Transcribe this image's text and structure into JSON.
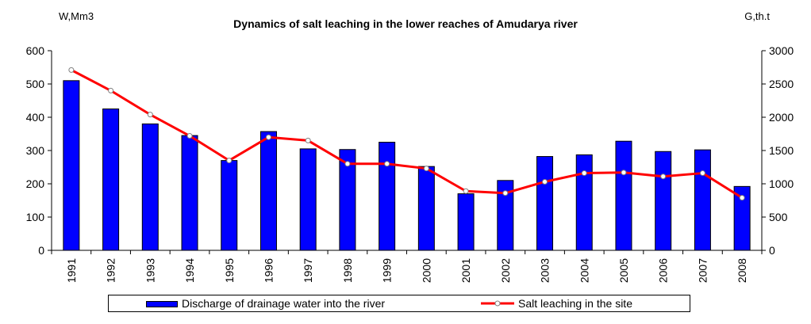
{
  "chart_data": {
    "type": "bar",
    "title": "Dynamics of salt leaching in the lower reaches of Amudarya river",
    "ylabel": "W,Mm3",
    "ylabel_right": "G,th.t",
    "categories": [
      "1991",
      "1992",
      "1993",
      "1994",
      "1995",
      "1996",
      "1997",
      "1998",
      "1999",
      "2000",
      "2001",
      "2002",
      "2003",
      "2004",
      "2005",
      "2006",
      "2007",
      "2008"
    ],
    "series": [
      {
        "name": "Discharge of drainage water into the river",
        "type": "bar",
        "axis": "left",
        "color": "#0000ff",
        "values": [
          510,
          425,
          380,
          345,
          270,
          357,
          305,
          303,
          325,
          252,
          170,
          210,
          282,
          287,
          328,
          297,
          302,
          192
        ]
      },
      {
        "name": "Salt leaching in the site",
        "type": "line",
        "axis": "right",
        "color": "#ff0000",
        "values": [
          2710,
          2400,
          2040,
          1720,
          1350,
          1700,
          1650,
          1300,
          1300,
          1230,
          890,
          860,
          1030,
          1160,
          1170,
          1110,
          1160,
          790
        ]
      }
    ],
    "ylim": [
      0,
      600
    ],
    "yticks": [
      0,
      100,
      200,
      300,
      400,
      500,
      600
    ],
    "ylim_right": [
      0,
      3000
    ],
    "yticks_right": [
      0,
      500,
      1000,
      1500,
      2000,
      2500,
      3000
    ],
    "grid": false,
    "legend": "bottom"
  }
}
